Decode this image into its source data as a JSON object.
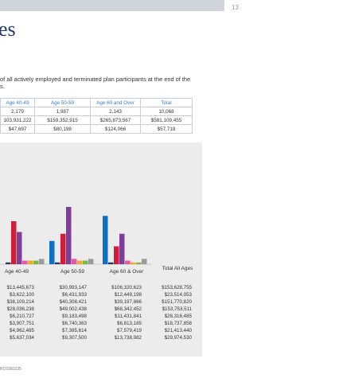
{
  "page": {
    "number": "13",
    "title_fragment": "es",
    "footnote": "RO1583135"
  },
  "intro": {
    "line1": "of all actively employed and terminated plan participants at the end of the",
    "line2": "s."
  },
  "summary_table": {
    "headers": [
      "Age 40-49",
      "Age 50-59",
      "Age 60 and Over",
      "Total"
    ],
    "rows": [
      [
        "2,179",
        "1,987",
        "2,143",
        "10,068"
      ],
      [
        "103,931,222",
        "$159,352,915",
        "$265,873,567",
        "$581,109,455"
      ],
      [
        "$47,697",
        "$80,198",
        "$124,066",
        "$57,718"
      ]
    ]
  },
  "chart_data": {
    "type": "bar",
    "categories": [
      "Age 40-49",
      "Age 50-59",
      "Age 60 & Over",
      "Total All Ages"
    ],
    "series": [
      {
        "color": "#0f6fc6",
        "values": [
          null,
          13,
          27,
          null
        ]
      },
      {
        "color": "#1f3a6e",
        "values": [
          1,
          1,
          1,
          null
        ]
      },
      {
        "color": "#d01e3a",
        "values": [
          24,
          17,
          10,
          null
        ]
      },
      {
        "color": "#7f3f98",
        "values": [
          18,
          32,
          17,
          null
        ]
      },
      {
        "color": "#e35aa2",
        "values": [
          2,
          3,
          2,
          null
        ]
      },
      {
        "color": "#f6a623",
        "values": [
          2,
          2,
          1,
          null
        ]
      },
      {
        "color": "#7ab648",
        "values": [
          2,
          2,
          1,
          null
        ]
      },
      {
        "color": "#9b9b9b",
        "values": [
          3,
          3,
          3,
          null
        ]
      }
    ],
    "table_values": [
      [
        "$13,445,673",
        "$30,993,147",
        "$106,320,623",
        "$153,628,755"
      ],
      [
        "$3,622,100",
        "$6,431,933",
        "$12,449,198",
        "$23,514,053"
      ],
      [
        "$38,109,214",
        "$40,308,421",
        "$39,197,866",
        "$151,770,820"
      ],
      [
        "$28,036,238",
        "$49,002,438",
        "$68,342,452",
        "$153,753,511"
      ],
      [
        "$6,210,727",
        "$9,183,498",
        "$11,431,841",
        "$28,316,485"
      ],
      [
        "$3,907,751",
        "$6,740,363",
        "$6,813,185",
        "$18,737,858"
      ],
      [
        "$4,962,485",
        "$7,385,614",
        "$7,579,419",
        "$21,413,440"
      ],
      [
        "$5,637,034",
        "$9,307,500",
        "$13,738,982",
        "$29,974,530"
      ]
    ]
  }
}
